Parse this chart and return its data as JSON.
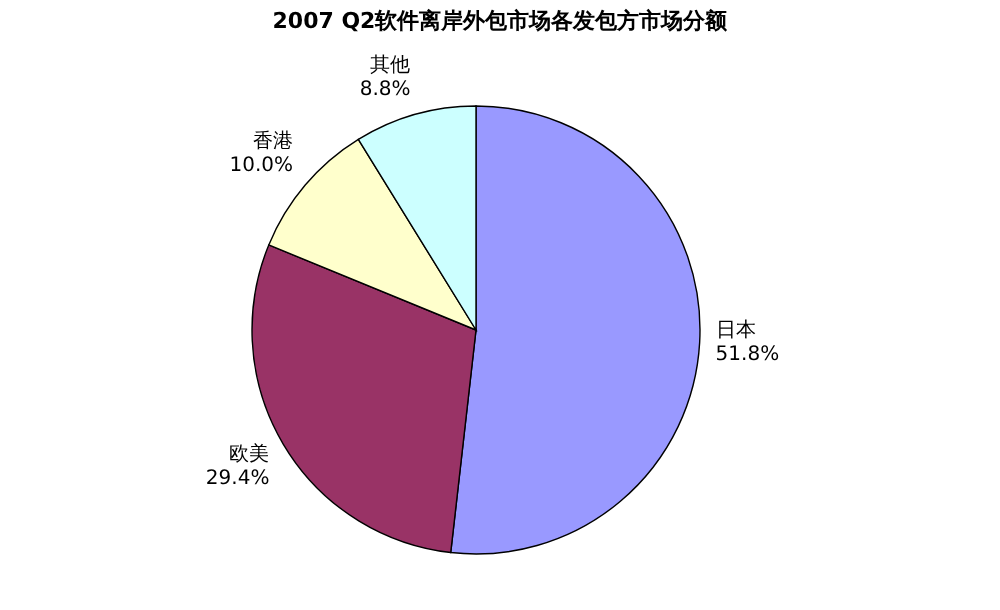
{
  "chart_data": {
    "type": "pie",
    "title": "2007 Q2软件离岸外包市场各发包方市场分额",
    "categories": [
      "日本",
      "欧美",
      "香港",
      "其他"
    ],
    "values": [
      51.8,
      29.4,
      10.0,
      8.8
    ],
    "value_labels": [
      "51.8%",
      "29.4%",
      "10.0%",
      "8.8%"
    ],
    "colors": [
      "#9999ff",
      "#993366",
      "#ffffcc",
      "#ccffff"
    ]
  }
}
